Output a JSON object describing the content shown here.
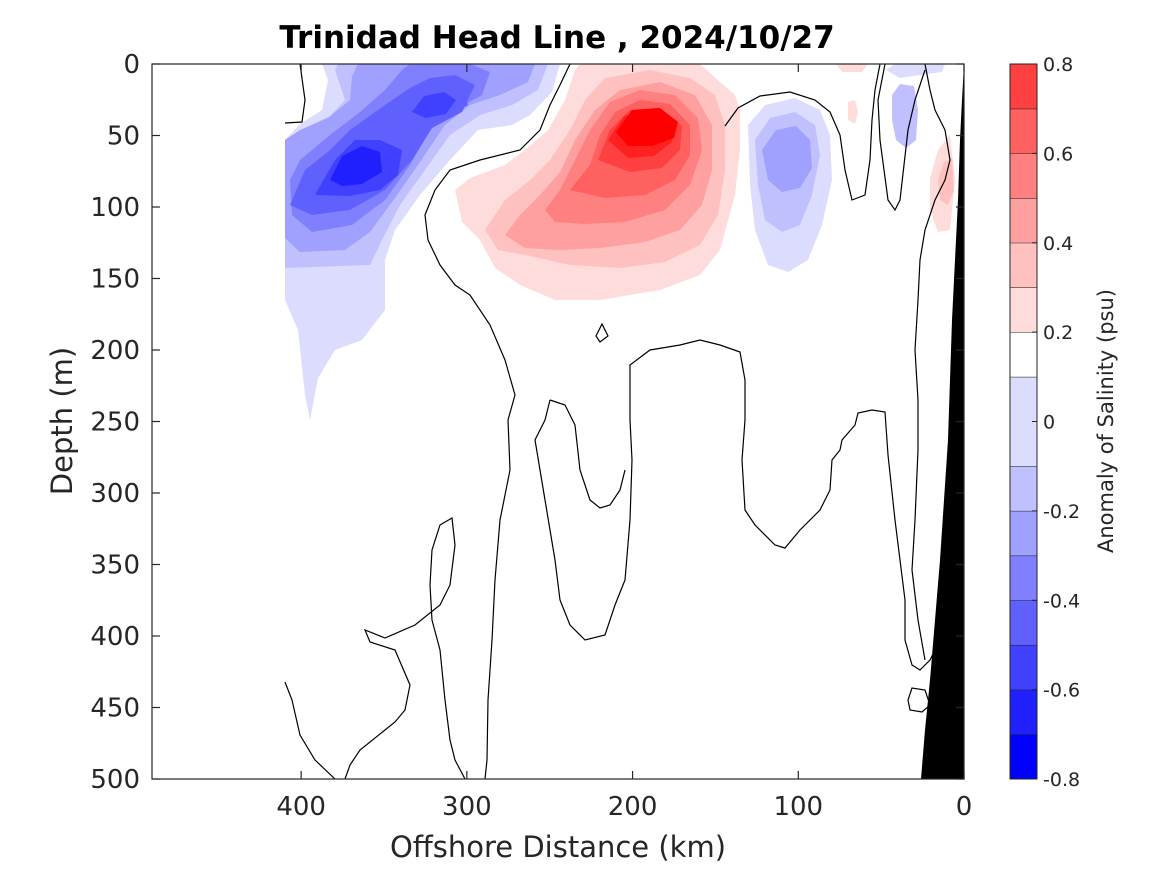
{
  "chart_data": {
    "type": "heatmap",
    "title": "Trinidad Head Line , 2024/10/27",
    "xlabel": "Offshore Distance (km)",
    "ylabel": "Depth (m)",
    "xlim": [
      490,
      0
    ],
    "ylim": [
      0,
      500
    ],
    "x_reversed": true,
    "y_reversed": true,
    "x_ticks": [
      "400",
      "300",
      "200",
      "100",
      "0"
    ],
    "y_ticks": [
      "0",
      "50",
      "100",
      "150",
      "200",
      "250",
      "300",
      "350",
      "400",
      "450",
      "500"
    ],
    "colorbar": {
      "label": "Anomaly of Salinity (psu)",
      "range": [
        -0.8,
        0.8
      ],
      "levels": [
        -0.8,
        -0.7,
        -0.6,
        -0.5,
        -0.4,
        -0.3,
        -0.2,
        -0.1,
        0.1,
        0.2,
        0.3,
        0.4,
        0.5,
        0.6,
        0.7,
        0.8
      ],
      "ticks": [
        "0.8",
        "0.6",
        "0.4",
        "0.2",
        "0",
        "-0.2",
        "-0.4",
        "-0.6",
        "-0.8"
      ],
      "colors": [
        "#0000ff",
        "#2020ff",
        "#4040ff",
        "#6060ff",
        "#8080ff",
        "#a0a0ff",
        "#c0c0ff",
        "#dcdcff",
        "#ffffff",
        "#ffdcdc",
        "#ffc0c0",
        "#ffa0a0",
        "#ff8080",
        "#ff6060",
        "#ff4040",
        "#ff2020",
        "#ff0000"
      ]
    },
    "features": [
      {
        "kind": "salinity_anomaly_min",
        "offshore_km": 355,
        "depth_m": 75,
        "value": -0.65
      },
      {
        "kind": "salinity_anomaly_min",
        "offshore_km": 320,
        "depth_m": 27,
        "value": -0.45
      },
      {
        "kind": "salinity_anomaly_min",
        "offshore_km": 110,
        "depth_m": 70,
        "value": -0.35
      },
      {
        "kind": "salinity_anomaly_min",
        "offshore_km": 50,
        "depth_m": 35,
        "value": -0.25
      },
      {
        "kind": "salinity_anomaly_max",
        "offshore_km": 190,
        "depth_m": 42,
        "value": 0.75
      },
      {
        "kind": "salinity_anomaly_max",
        "offshore_km": 10,
        "depth_m": 85,
        "value": 0.2
      }
    ],
    "bathymetry": {
      "color": "#000000",
      "shelf_edge_km": [
        [
          0,
          0
        ],
        [
          25,
          500
        ]
      ]
    },
    "grid": false
  }
}
